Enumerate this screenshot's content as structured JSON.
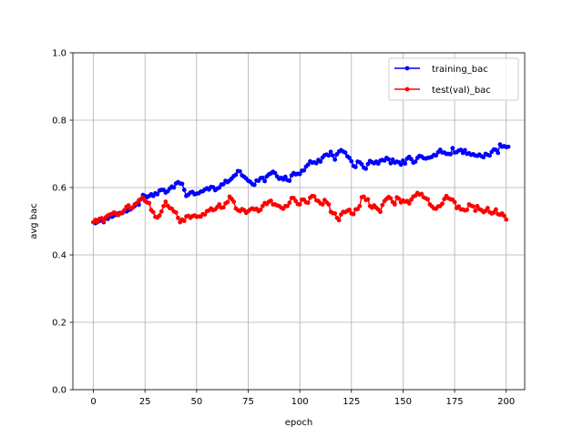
{
  "chart_data": {
    "type": "line",
    "title": "",
    "xlabel": "epoch",
    "ylabel": "avg bac",
    "xlim": [
      -9.95,
      208.95
    ],
    "ylim": [
      0.0,
      1.0
    ],
    "xticks": [
      0,
      25,
      50,
      75,
      100,
      125,
      150,
      175,
      200
    ],
    "yticks": [
      0.0,
      0.2,
      0.4,
      0.6,
      0.8,
      1.0
    ],
    "xtick_labels": [
      "0",
      "25",
      "50",
      "75",
      "100",
      "125",
      "150",
      "175",
      "200"
    ],
    "ytick_labels": [
      "0.0",
      "0.2",
      "0.4",
      "0.6",
      "0.8",
      "1.0"
    ],
    "grid": true,
    "legend_position": "top-right",
    "series": [
      {
        "name": "training_bac",
        "color": "#0000ff",
        "x_start": 0,
        "x_step": 1,
        "values": [
          0.497,
          0.494,
          0.503,
          0.501,
          0.504,
          0.497,
          0.51,
          0.507,
          0.515,
          0.513,
          0.517,
          0.519,
          0.523,
          0.525,
          0.524,
          0.53,
          0.529,
          0.533,
          0.535,
          0.54,
          0.545,
          0.553,
          0.549,
          0.565,
          0.578,
          0.575,
          0.571,
          0.575,
          0.58,
          0.575,
          0.583,
          0.58,
          0.591,
          0.593,
          0.593,
          0.585,
          0.589,
          0.597,
          0.603,
          0.6,
          0.612,
          0.616,
          0.612,
          0.611,
          0.593,
          0.575,
          0.579,
          0.585,
          0.587,
          0.58,
          0.582,
          0.583,
          0.588,
          0.589,
          0.594,
          0.598,
          0.594,
          0.602,
          0.601,
          0.592,
          0.597,
          0.6,
          0.609,
          0.61,
          0.62,
          0.616,
          0.621,
          0.627,
          0.634,
          0.638,
          0.649,
          0.648,
          0.636,
          0.632,
          0.627,
          0.62,
          0.617,
          0.61,
          0.608,
          0.621,
          0.62,
          0.628,
          0.629,
          0.619,
          0.633,
          0.639,
          0.642,
          0.647,
          0.643,
          0.633,
          0.626,
          0.629,
          0.624,
          0.632,
          0.622,
          0.62,
          0.636,
          0.643,
          0.639,
          0.641,
          0.64,
          0.65,
          0.651,
          0.662,
          0.668,
          0.678,
          0.674,
          0.675,
          0.672,
          0.682,
          0.677,
          0.689,
          0.696,
          0.698,
          0.695,
          0.706,
          0.695,
          0.683,
          0.699,
          0.707,
          0.711,
          0.707,
          0.704,
          0.693,
          0.688,
          0.678,
          0.664,
          0.661,
          0.677,
          0.675,
          0.669,
          0.659,
          0.656,
          0.67,
          0.679,
          0.675,
          0.672,
          0.677,
          0.671,
          0.68,
          0.682,
          0.68,
          0.688,
          0.684,
          0.672,
          0.683,
          0.674,
          0.677,
          0.675,
          0.668,
          0.68,
          0.671,
          0.686,
          0.691,
          0.684,
          0.674,
          0.677,
          0.688,
          0.694,
          0.692,
          0.687,
          0.686,
          0.688,
          0.689,
          0.691,
          0.697,
          0.695,
          0.705,
          0.712,
          0.704,
          0.704,
          0.7,
          0.7,
          0.699,
          0.717,
          0.704,
          0.705,
          0.71,
          0.712,
          0.703,
          0.711,
          0.7,
          0.702,
          0.697,
          0.699,
          0.695,
          0.694,
          0.698,
          0.693,
          0.69,
          0.7,
          0.697,
          0.695,
          0.706,
          0.713,
          0.712,
          0.703,
          0.728,
          0.721,
          0.723,
          0.72,
          0.721
        ]
      },
      {
        "name": "test(val)_bac",
        "color": "#ff0000",
        "x_start": 0,
        "x_step": 1,
        "values": [
          0.497,
          0.504,
          0.497,
          0.507,
          0.509,
          0.501,
          0.512,
          0.517,
          0.52,
          0.522,
          0.526,
          0.523,
          0.518,
          0.523,
          0.526,
          0.533,
          0.543,
          0.547,
          0.538,
          0.541,
          0.55,
          0.554,
          0.562,
          0.566,
          0.57,
          0.56,
          0.556,
          0.554,
          0.533,
          0.527,
          0.513,
          0.511,
          0.517,
          0.529,
          0.545,
          0.558,
          0.546,
          0.539,
          0.537,
          0.529,
          0.526,
          0.51,
          0.497,
          0.505,
          0.501,
          0.514,
          0.516,
          0.51,
          0.515,
          0.517,
          0.513,
          0.514,
          0.514,
          0.521,
          0.52,
          0.53,
          0.532,
          0.538,
          0.533,
          0.535,
          0.542,
          0.55,
          0.54,
          0.541,
          0.553,
          0.557,
          0.573,
          0.566,
          0.558,
          0.538,
          0.533,
          0.53,
          0.536,
          0.533,
          0.525,
          0.53,
          0.535,
          0.538,
          0.535,
          0.537,
          0.53,
          0.534,
          0.545,
          0.554,
          0.551,
          0.558,
          0.561,
          0.55,
          0.55,
          0.547,
          0.545,
          0.54,
          0.537,
          0.545,
          0.545,
          0.555,
          0.569,
          0.569,
          0.56,
          0.551,
          0.55,
          0.564,
          0.564,
          0.556,
          0.555,
          0.57,
          0.575,
          0.574,
          0.562,
          0.56,
          0.553,
          0.55,
          0.563,
          0.556,
          0.55,
          0.528,
          0.524,
          0.523,
          0.51,
          0.503,
          0.52,
          0.528,
          0.527,
          0.531,
          0.534,
          0.523,
          0.521,
          0.535,
          0.536,
          0.545,
          0.571,
          0.573,
          0.563,
          0.565,
          0.545,
          0.54,
          0.547,
          0.54,
          0.535,
          0.528,
          0.548,
          0.56,
          0.566,
          0.572,
          0.568,
          0.557,
          0.55,
          0.571,
          0.567,
          0.556,
          0.562,
          0.558,
          0.56,
          0.553,
          0.564,
          0.573,
          0.576,
          0.584,
          0.579,
          0.581,
          0.571,
          0.568,
          0.565,
          0.55,
          0.544,
          0.538,
          0.537,
          0.544,
          0.545,
          0.552,
          0.566,
          0.575,
          0.568,
          0.565,
          0.564,
          0.557,
          0.539,
          0.544,
          0.535,
          0.535,
          0.532,
          0.534,
          0.55,
          0.546,
          0.544,
          0.531,
          0.545,
          0.536,
          0.533,
          0.527,
          0.531,
          0.539,
          0.527,
          0.523,
          0.526,
          0.535,
          0.521,
          0.519,
          0.523,
          0.516,
          0.505
        ]
      }
    ]
  }
}
